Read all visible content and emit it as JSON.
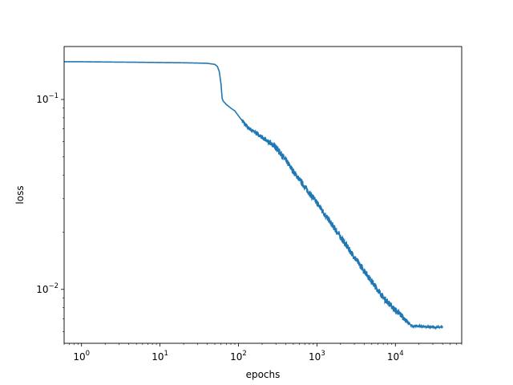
{
  "chart_data": {
    "type": "line",
    "title": "",
    "xlabel": "epochs",
    "ylabel": "loss",
    "xscale": "log",
    "yscale": "log",
    "xlim": [
      0.6,
      70000
    ],
    "ylim": [
      0.0052,
      0.19
    ],
    "grid": false,
    "legend": "none",
    "colors": {
      "line": "#1f77b4",
      "axes": "#000000",
      "background": "#ffffff"
    },
    "x_ticks": [
      {
        "value": 1,
        "base": "10",
        "exp": "0"
      },
      {
        "value": 10,
        "base": "10",
        "exp": "1"
      },
      {
        "value": 100,
        "base": "10",
        "exp": "2"
      },
      {
        "value": 1000,
        "base": "10",
        "exp": "3"
      },
      {
        "value": 10000,
        "base": "10",
        "exp": "4"
      }
    ],
    "y_ticks": [
      {
        "value": 0.1,
        "base": "10",
        "exp": "−1"
      },
      {
        "value": 0.01,
        "base": "10",
        "exp": "−2"
      }
    ],
    "series": [
      {
        "x": [
          0.6,
          1,
          2,
          5,
          10,
          20,
          30,
          40,
          50,
          54,
          57,
          60,
          62,
          64,
          67,
          70,
          75,
          80,
          90,
          100,
          130,
          200,
          300,
          400,
          500,
          700,
          1000,
          2000,
          3000,
          5000,
          7000,
          10000,
          15000,
          16000,
          20000,
          30000,
          40000
        ],
        "y": [
          0.158,
          0.158,
          0.1575,
          0.157,
          0.1565,
          0.156,
          0.1555,
          0.155,
          0.153,
          0.149,
          0.14,
          0.12,
          0.101,
          0.098,
          0.096,
          0.094,
          0.092,
          0.09,
          0.087,
          0.082,
          0.071,
          0.063,
          0.055,
          0.047,
          0.041,
          0.034,
          0.028,
          0.0185,
          0.0145,
          0.0108,
          0.0089,
          0.0076,
          0.0066,
          0.0064,
          0.0064,
          0.0063,
          0.0063
        ]
      }
    ]
  }
}
